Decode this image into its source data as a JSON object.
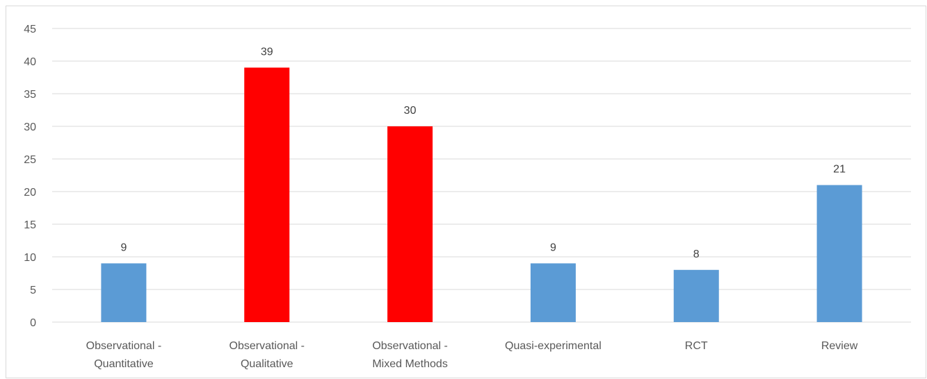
{
  "chart_data": {
    "type": "bar",
    "title": "",
    "xlabel": "",
    "ylabel": "",
    "categories": [
      [
        "Observational -",
        "Quantitative"
      ],
      [
        "Observational -",
        "Qualitative"
      ],
      [
        "Observational -",
        "Mixed Methods"
      ],
      [
        "Quasi-experimental"
      ],
      [
        "RCT"
      ],
      [
        "Review"
      ]
    ],
    "values": [
      9,
      39,
      30,
      9,
      8,
      21
    ],
    "bar_colors": [
      "#5b9bd5",
      "#ff0000",
      "#ff0000",
      "#5b9bd5",
      "#5b9bd5",
      "#5b9bd5"
    ],
    "ylim": [
      0,
      45
    ],
    "yticks": [
      0,
      5,
      10,
      15,
      20,
      25,
      30,
      35,
      40,
      45
    ],
    "grid": true,
    "data_labels": true,
    "gridline_color": "#d9d9d9",
    "axis_text_color": "#595959"
  }
}
